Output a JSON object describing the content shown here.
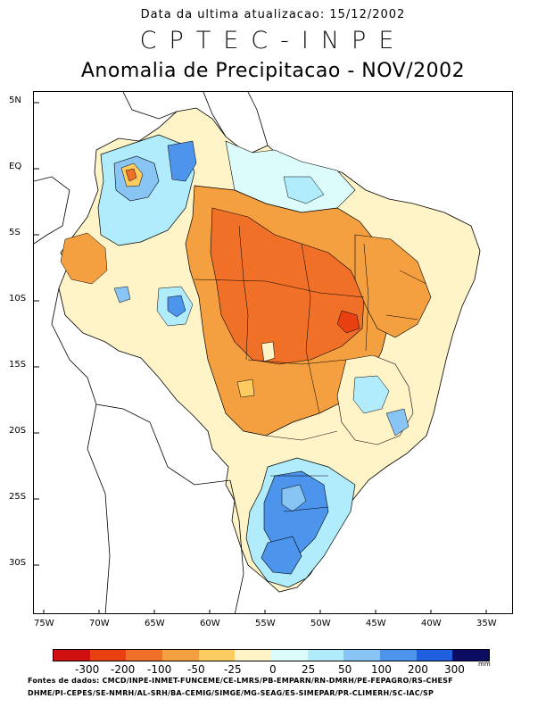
{
  "header": {
    "update_text": "Data da ultima atualizacao: 15/12/2002",
    "agency": "CPTEC-INPE",
    "title": "Anomalia de Precipitacao - NOV/2002"
  },
  "map": {
    "lat_labels": [
      "5N",
      "EQ",
      "5S",
      "10S",
      "15S",
      "20S",
      "25S",
      "30S"
    ],
    "lon_labels": [
      "75W",
      "70W",
      "65W",
      "60W",
      "55W",
      "50W",
      "45W",
      "40W",
      "35W"
    ]
  },
  "legend": {
    "unit": "mm",
    "labels": [
      "-300",
      "-200",
      "-100",
      "-50",
      "-25",
      "0",
      "25",
      "50",
      "100",
      "200",
      "300"
    ],
    "colors": [
      "#d01010",
      "#e84010",
      "#f07028",
      "#f5a040",
      "#fccc60",
      "#fff4c8",
      "#dcfcfc",
      "#b0ecfc",
      "#88c4f4",
      "#4c94ec",
      "#2060e0",
      "#0c0c60"
    ]
  },
  "sources": {
    "line1": "Fontes de dados: CMCD/INPE-INMET-FUNCEME/CE-LMRS/PB-EMPARN/RN-DMRH/PE-FEPAGRO/RS-CHESF",
    "line2": "DHME/PI-CEPES/SE-NMRH/AL-SRH/BA-CEMIG/SIMGE/MG-SEAG/ES-SIMEPAR/PR-CLIMERH/SC-IAC/SP"
  }
}
